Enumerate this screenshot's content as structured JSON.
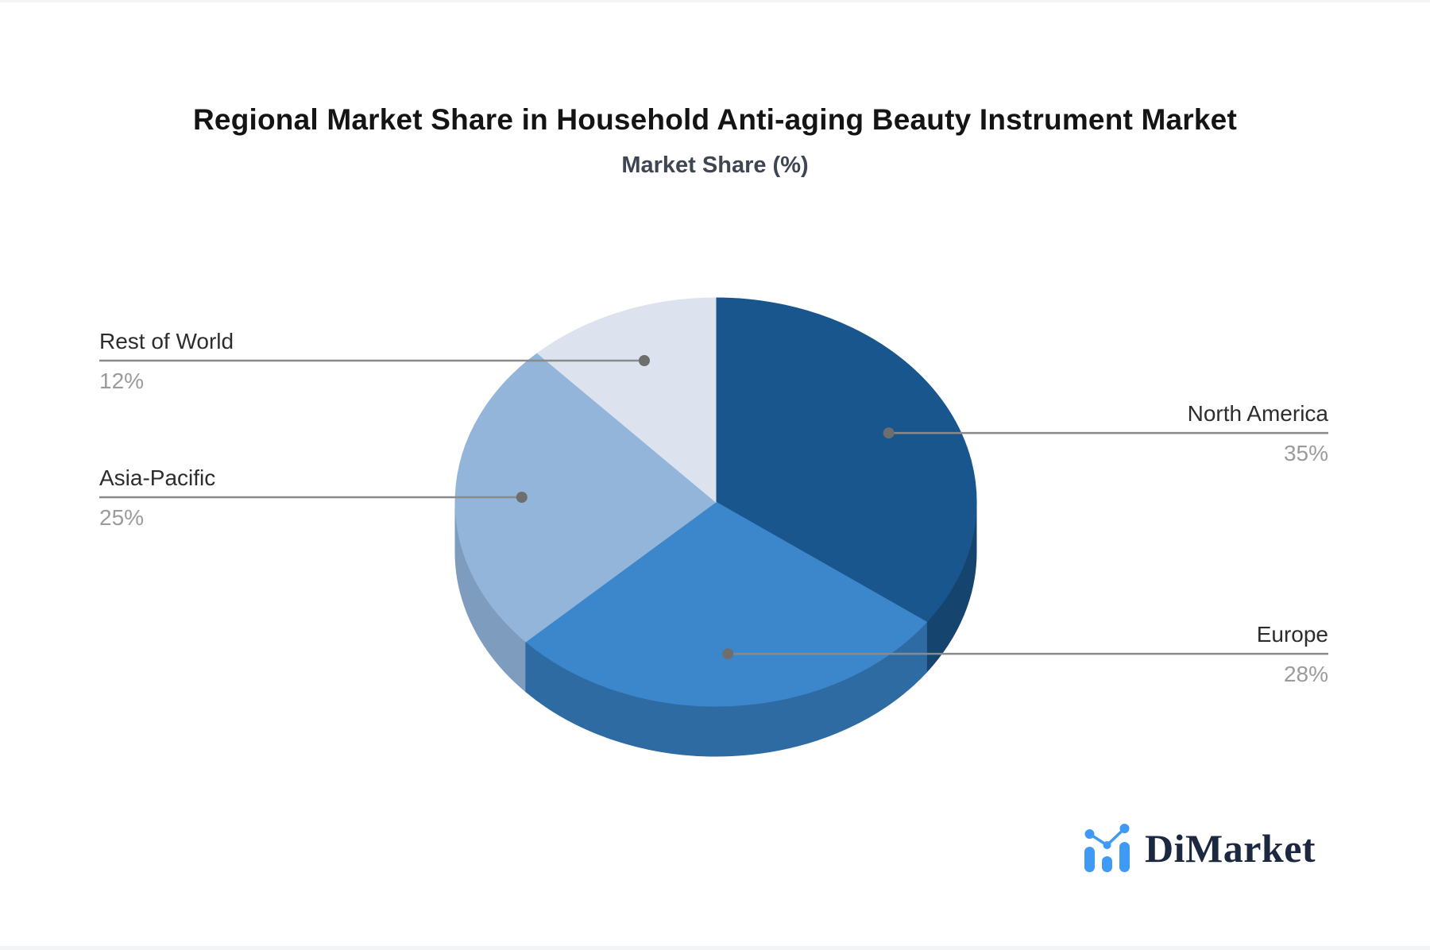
{
  "header": {
    "title": "Regional Market Share in Household Anti-aging Beauty Instrument Market",
    "subtitle": "Market Share (%)"
  },
  "chart_data": {
    "type": "pie",
    "is_3d": true,
    "title": "Regional Market Share in Household Anti-aging Beauty Instrument Market",
    "subtitle": "Market Share (%)",
    "unit": "%",
    "start_angle": "12-o-clock",
    "direction": "clockwise",
    "legend_position": "callout-labels",
    "slices": [
      {
        "label": "North America",
        "value": 35,
        "display": "35%",
        "color": "#19568e",
        "side_color": "#15456f"
      },
      {
        "label": "Europe",
        "value": 28,
        "display": "28%",
        "color": "#3c87cb",
        "side_color": "#2e6ba3"
      },
      {
        "label": "Asia-Pacific",
        "value": 25,
        "display": "25%",
        "color": "#93b5da",
        "side_color": "#7e9cbd"
      },
      {
        "label": "Rest of World",
        "value": 12,
        "display": "12%",
        "color": "#dde3ee",
        "side_color": "#b8c2d3"
      }
    ],
    "label_color": "#2d2d2d",
    "value_color": "#9b9b9b",
    "leader_line_color": "#8a8a8a"
  },
  "branding": {
    "logo_text": "DiMarket",
    "logo_icon": "bar-chart-icon",
    "logo_color": "#3f9af5"
  }
}
